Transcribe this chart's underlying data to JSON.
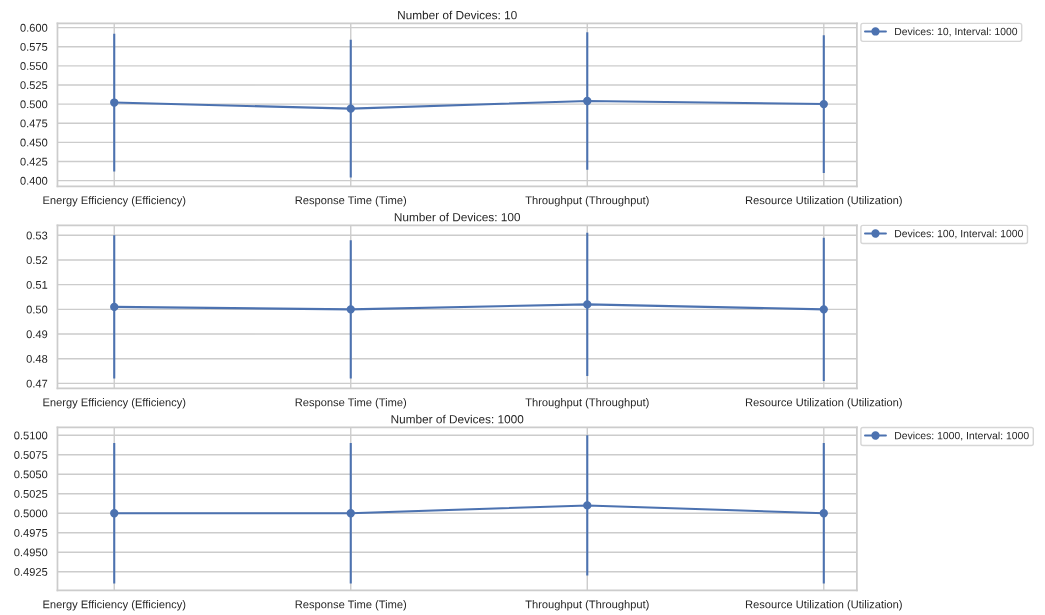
{
  "chart_data": [
    {
      "type": "line",
      "title": "Number of Devices: 10",
      "categories": [
        "Energy Efficiency (Efficiency)",
        "Response Time (Time)",
        "Throughput (Throughput)",
        "Resource Utilization (Utilization)"
      ],
      "series": [
        {
          "name": "Devices: 10, Interval: 1000",
          "color": "#4c72b0",
          "values": [
            0.502,
            0.494,
            0.504,
            0.5
          ],
          "errors": [
            [
              0.09,
              0.09
            ],
            [
              0.09,
              0.09
            ],
            [
              0.09,
              0.09
            ],
            [
              0.09,
              0.09
            ]
          ]
        }
      ],
      "ylim": [
        0.3925,
        0.6055
      ],
      "yticks": [
        {
          "value": 0.4,
          "label": "0.400"
        },
        {
          "value": 0.425,
          "label": "0.425"
        },
        {
          "value": 0.45,
          "label": "0.450"
        },
        {
          "value": 0.475,
          "label": "0.475"
        },
        {
          "value": 0.5,
          "label": "0.500"
        },
        {
          "value": 0.525,
          "label": "0.525"
        },
        {
          "value": 0.55,
          "label": "0.550"
        },
        {
          "value": 0.575,
          "label": "0.575"
        },
        {
          "value": 0.6,
          "label": "0.600"
        }
      ],
      "grid": true,
      "legend": "top right",
      "marker": "circle",
      "line_style": "solid"
    },
    {
      "type": "line",
      "title": "Number of Devices: 100",
      "categories": [
        "Energy Efficiency (Efficiency)",
        "Response Time (Time)",
        "Throughput (Throughput)",
        "Resource Utilization (Utilization)"
      ],
      "series": [
        {
          "name": "Devices: 100, Interval: 1000",
          "color": "#4c72b0",
          "values": [
            0.501,
            0.5,
            0.502,
            0.5
          ],
          "errors": [
            [
              0.029,
              0.029
            ],
            [
              0.028,
              0.028
            ],
            [
              0.029,
              0.029
            ],
            [
              0.029,
              0.029
            ]
          ]
        }
      ],
      "ylim": [
        0.468,
        0.534
      ],
      "yticks": [
        0.47,
        0.48,
        0.49,
        {
          "value": 0.5,
          "label": "0.50"
        },
        0.51,
        0.52,
        0.53
      ],
      "grid": true,
      "legend": "top right",
      "marker": "circle",
      "line_style": "solid"
    },
    {
      "type": "line",
      "title": "Number of Devices: 1000",
      "categories": [
        "Energy Efficiency (Efficiency)",
        "Response Time (Time)",
        "Throughput (Throughput)",
        "Resource Utilization (Utilization)"
      ],
      "series": [
        {
          "name": "Devices: 1000, Interval: 1000",
          "color": "#4c72b0",
          "values": [
            0.5,
            0.5,
            0.501,
            0.5
          ],
          "errors": [
            [
              0.009,
              0.009
            ],
            [
              0.009,
              0.009
            ],
            [
              0.009,
              0.009
            ],
            [
              0.009,
              0.009
            ]
          ]
        }
      ],
      "ylim": [
        0.4901,
        0.511
      ],
      "yticks": [
        0.4925,
        {
          "value": 0.495,
          "label": "0.4950"
        },
        0.4975,
        {
          "value": 0.5,
          "label": "0.5000"
        },
        0.5025,
        {
          "value": 0.505,
          "label": "0.5050"
        },
        0.5075,
        {
          "value": 0.51,
          "label": "0.5100"
        }
      ],
      "grid": true,
      "legend": "top right",
      "marker": "circle",
      "line_style": "solid"
    }
  ]
}
